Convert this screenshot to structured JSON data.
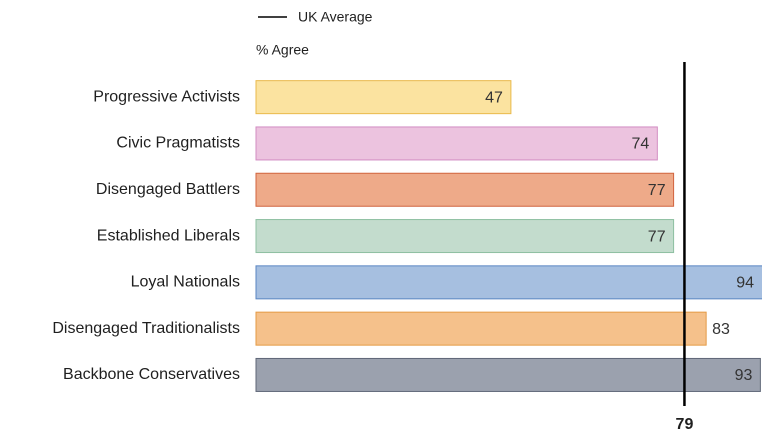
{
  "chart_data": {
    "type": "bar",
    "orientation": "horizontal",
    "x_label": "% Agree",
    "categories": [
      "Progressive Activists",
      "Civic Pragmatists",
      "Disengaged Battlers",
      "Established Liberals",
      "Loyal Nationals",
      "Disengaged Traditionalists",
      "Backbone Conservatives"
    ],
    "values": [
      47,
      74,
      77,
      77,
      94,
      83,
      93
    ],
    "colors": [
      "#fbe3a0",
      "#ecc3df",
      "#eeaa89",
      "#c3dccd",
      "#a6bfe0",
      "#f5c18b",
      "#9ba1ae"
    ],
    "border_colors": [
      "#e9b94b",
      "#d28cc2",
      "#d1643f",
      "#8dbfa1",
      "#5a86c2",
      "#e49a45",
      "#5f6677"
    ],
    "xlim": [
      0,
      93.3
    ],
    "reference_line": {
      "name": "UK Average",
      "value": 79,
      "color": "#000000"
    }
  }
}
